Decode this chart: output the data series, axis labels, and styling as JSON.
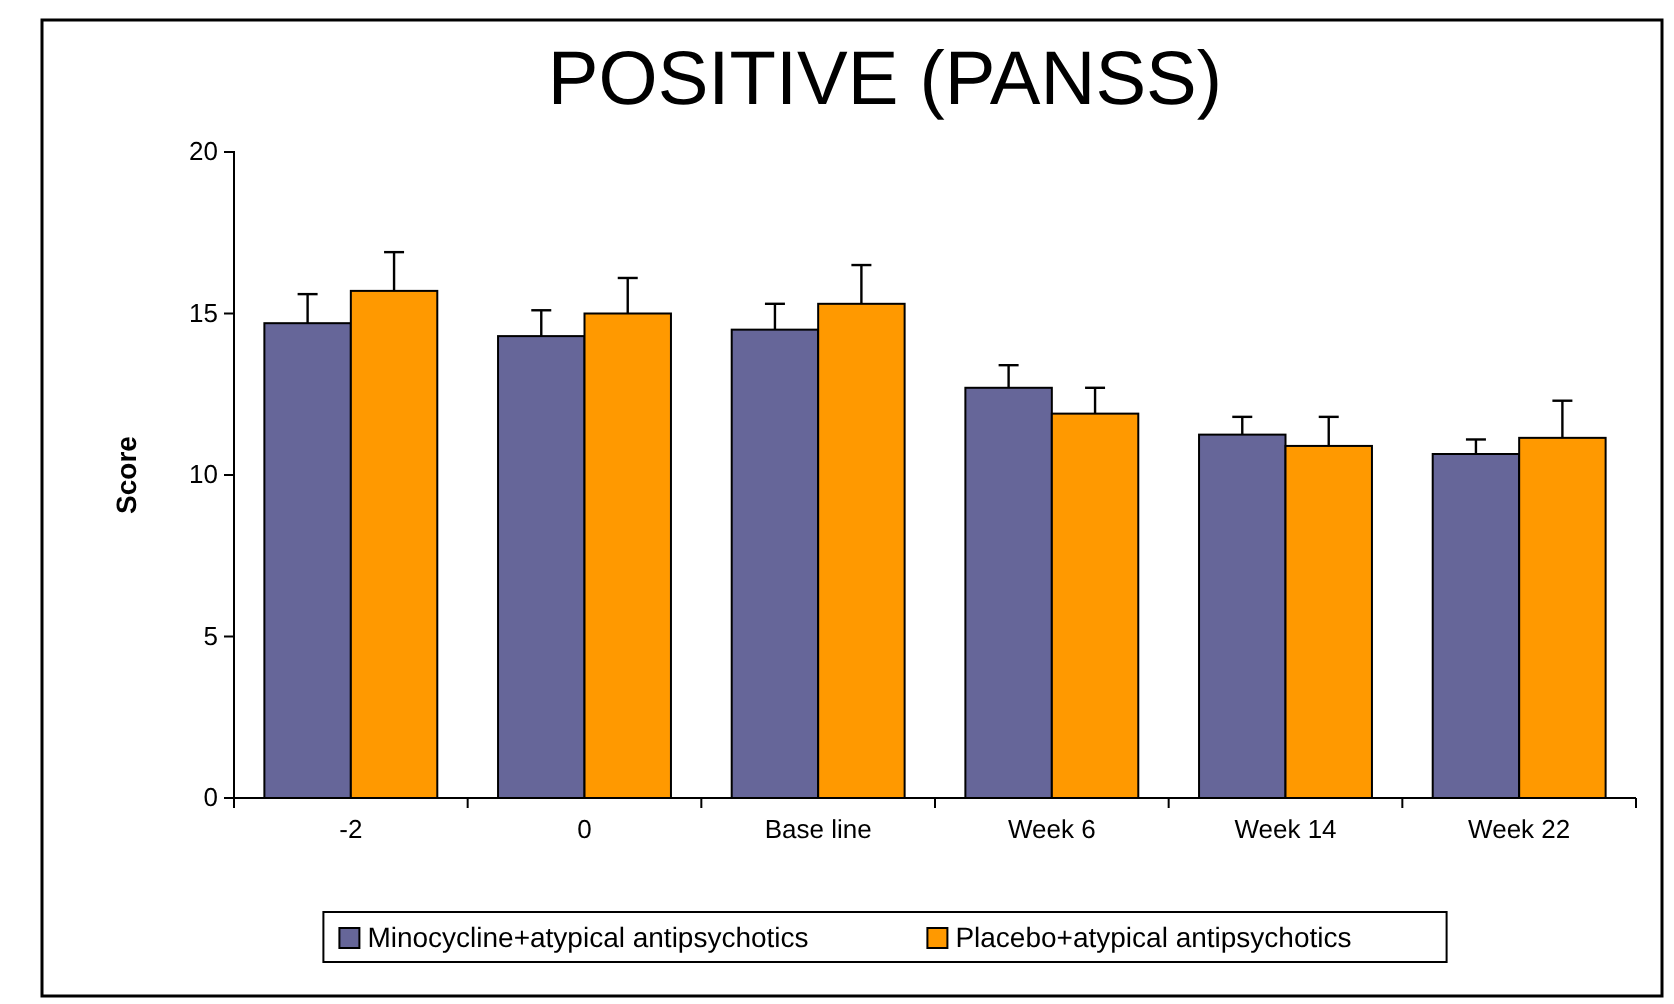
{
  "chart_data": {
    "type": "bar",
    "title": "POSITIVE (PANSS)",
    "ylabel": "Score",
    "categories": [
      "-2",
      "0",
      "Base line",
      "Week 6",
      "Week 14",
      "Week 22"
    ],
    "series": [
      {
        "name": "Minocycline+atypical antipsychotics",
        "color": "#666699",
        "values": [
          14.7,
          14.3,
          14.5,
          12.7,
          11.25,
          10.65
        ],
        "errors": [
          [
            14.7,
            15.6
          ],
          [
            14.3,
            15.1
          ],
          [
            14.5,
            15.3
          ],
          [
            12.7,
            13.4
          ],
          [
            11.25,
            11.8
          ],
          [
            10.65,
            11.1
          ]
        ]
      },
      {
        "name": "Placebo+atypical antipsychotics",
        "color": "#ff9900",
        "values": [
          15.7,
          15.0,
          15.3,
          11.9,
          10.9,
          11.15
        ],
        "errors": [
          [
            15.7,
            16.9
          ],
          [
            15.0,
            16.1
          ],
          [
            15.3,
            16.5
          ],
          [
            11.9,
            12.7
          ],
          [
            10.9,
            11.8
          ],
          [
            11.15,
            12.3
          ]
        ]
      }
    ],
    "ylim": [
      0,
      20
    ],
    "yticks": [
      0,
      5,
      10,
      15,
      20
    ],
    "grid": false,
    "legend": "bottom"
  }
}
